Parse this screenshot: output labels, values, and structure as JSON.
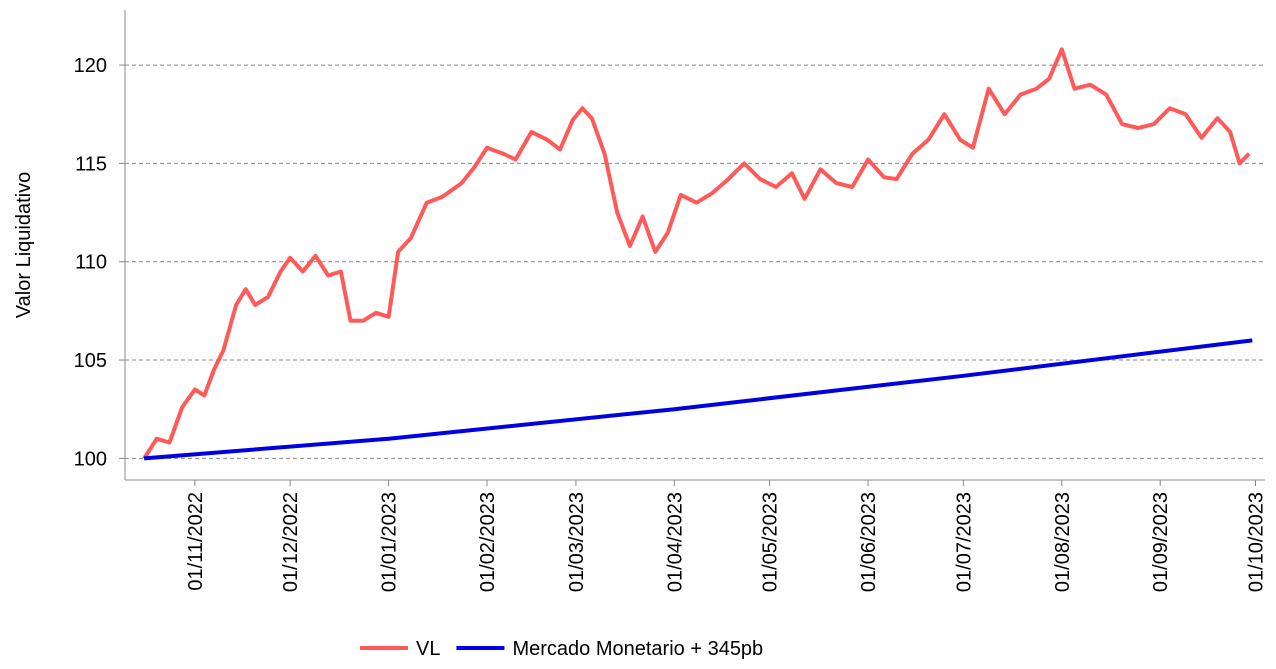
{
  "chart_data": {
    "type": "line",
    "y_label": "Valor Liquidativo",
    "xlim": [
      "10/10/2022",
      "04/10/2023"
    ],
    "xticks": [
      "01/11/2022",
      "01/12/2022",
      "01/01/2023",
      "01/02/2023",
      "01/03/2023",
      "01/04/2023",
      "01/05/2023",
      "01/06/2023",
      "01/07/2023",
      "01/08/2023",
      "01/09/2023",
      "01/10/2023"
    ],
    "ylim": [
      98.9,
      122.8
    ],
    "yticks": [
      100,
      105,
      110,
      115,
      120
    ],
    "grid": true,
    "legend": "bottom",
    "series": [
      {
        "name": "VL",
        "color": "#ff5a5a",
        "x": [
          "16/10/2022",
          "20/10/2022",
          "24/10/2022",
          "28/10/2022",
          "01/11/2022",
          "04/11/2022",
          "07/11/2022",
          "10/11/2022",
          "14/11/2022",
          "17/11/2022",
          "20/11/2022",
          "24/11/2022",
          "28/11/2022",
          "01/12/2022",
          "05/12/2022",
          "09/12/2022",
          "13/12/2022",
          "17/12/2022",
          "20/12/2022",
          "24/12/2022",
          "28/12/2022",
          "01/01/2023",
          "04/01/2023",
          "08/01/2023",
          "13/01/2023",
          "18/01/2023",
          "24/01/2023",
          "28/01/2023",
          "01/02/2023",
          "06/02/2023",
          "10/02/2023",
          "15/02/2023",
          "20/02/2023",
          "24/02/2023",
          "28/02/2023",
          "03/03/2023",
          "06/03/2023",
          "10/03/2023",
          "14/03/2023",
          "18/03/2023",
          "22/03/2023",
          "26/03/2023",
          "30/03/2023",
          "03/04/2023",
          "08/04/2023",
          "13/04/2023",
          "18/04/2023",
          "23/04/2023",
          "28/04/2023",
          "03/05/2023",
          "08/05/2023",
          "12/05/2023",
          "17/05/2023",
          "22/05/2023",
          "27/05/2023",
          "01/06/2023",
          "06/06/2023",
          "10/06/2023",
          "15/06/2023",
          "20/06/2023",
          "25/06/2023",
          "30/06/2023",
          "04/07/2023",
          "09/07/2023",
          "14/07/2023",
          "19/07/2023",
          "24/07/2023",
          "28/07/2023",
          "01/08/2023",
          "05/08/2023",
          "10/08/2023",
          "15/08/2023",
          "20/08/2023",
          "25/08/2023",
          "30/08/2023",
          "04/09/2023",
          "09/09/2023",
          "14/09/2023",
          "19/09/2023",
          "23/09/2023",
          "26/09/2023",
          "29/09/2023"
        ],
        "values": [
          100,
          101,
          100.8,
          102.6,
          103.5,
          103.2,
          104.5,
          105.5,
          107.8,
          108.6,
          107.8,
          108.2,
          109.5,
          110.2,
          109.5,
          110.3,
          109.3,
          109.5,
          107,
          107,
          107.4,
          107.2,
          110.5,
          111.2,
          113,
          113.3,
          114,
          114.8,
          115.8,
          115.5,
          115.2,
          116.6,
          116.2,
          115.7,
          117.2,
          117.8,
          117.3,
          115.5,
          112.5,
          110.8,
          112.3,
          110.5,
          111.5,
          113.4,
          113,
          113.5,
          114.2,
          115,
          114.2,
          113.8,
          114.5,
          113.2,
          114.7,
          114,
          113.8,
          115.2,
          114.3,
          114.2,
          115.5,
          116.2,
          117.5,
          116.2,
          115.8,
          118.8,
          117.5,
          118.5,
          118.8,
          119.3,
          120.8,
          118.8,
          119,
          118.5,
          117,
          116.8,
          117,
          117.8,
          117.5,
          116.3,
          117.3,
          116.6,
          115,
          115.5
        ]
      },
      {
        "name": "Mercado Monetario + 345pb",
        "color": "#0000e0",
        "x": [
          "16/10/2022",
          "01/01/2023",
          "01/04/2023",
          "01/07/2023",
          "30/09/2023"
        ],
        "values": [
          100,
          101,
          102.5,
          104.2,
          106
        ]
      }
    ]
  }
}
